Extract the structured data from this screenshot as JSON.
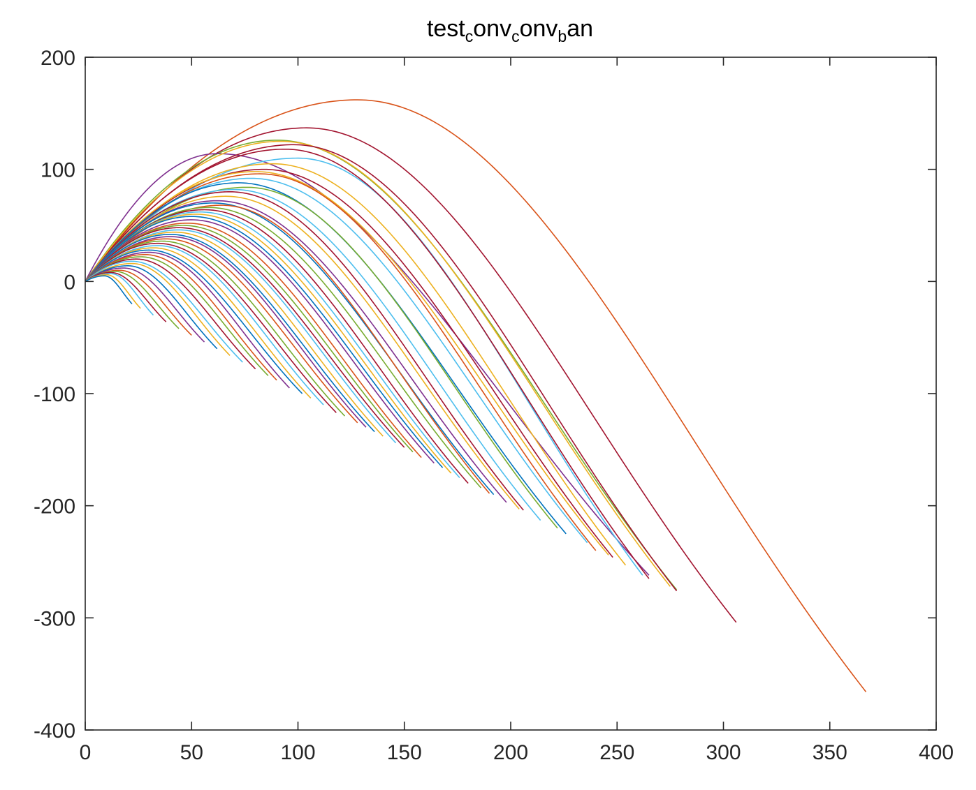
{
  "chart_data": {
    "type": "line",
    "title": {
      "parts": [
        {
          "text": "test",
          "sub": false
        },
        {
          "text": "c",
          "sub": true
        },
        {
          "text": "onv",
          "sub": false
        },
        {
          "text": "c",
          "sub": true
        },
        {
          "text": "onv",
          "sub": false
        },
        {
          "text": "b",
          "sub": true
        },
        {
          "text": "an",
          "sub": false
        }
      ]
    },
    "xlabel": "",
    "ylabel": "",
    "xlim": [
      0,
      400
    ],
    "ylim": [
      -400,
      200
    ],
    "xticks": [
      0,
      50,
      100,
      150,
      200,
      250,
      300,
      350,
      400
    ],
    "yticks": [
      -400,
      -300,
      -200,
      -100,
      0,
      100,
      200
    ],
    "xtick_labels": [
      "0",
      "50",
      "100",
      "150",
      "200",
      "250",
      "300",
      "350",
      "400"
    ],
    "ytick_labels": [
      "-400",
      "-300",
      "-200",
      "-100",
      "0",
      "100",
      "200"
    ],
    "grid": false,
    "legend": "none",
    "colors": [
      "#0072BD",
      "#D95319",
      "#EDB120",
      "#7E2F8E",
      "#77AC30",
      "#4DBEEE",
      "#A2142F"
    ],
    "description_of_family": "Projectile-like arcs starting at origin; each curve rises to an apex then descends and terminates on the line y ≈ -0.9·x.",
    "series": [
      {
        "color": "#D95319",
        "apex": [
          128,
          162
        ],
        "end": [
          367,
          -366
        ]
      },
      {
        "color": "#A2142F",
        "apex": [
          104,
          137
        ],
        "end": [
          306,
          -304
        ]
      },
      {
        "color": "#77AC30",
        "apex": [
          90,
          126
        ],
        "end": [
          278,
          -275
        ]
      },
      {
        "color": "#7E2F8E",
        "apex": [
          62,
          114
        ],
        "end": [
          265,
          -262
        ]
      },
      {
        "color": "#EDB120",
        "apex": [
          92,
          125
        ],
        "end": [
          275,
          -272
        ]
      },
      {
        "color": "#A2142F",
        "apex": [
          98,
          122
        ],
        "end": [
          278,
          -276
        ]
      },
      {
        "color": "#4DBEEE",
        "apex": [
          100,
          110
        ],
        "end": [
          262,
          -262
        ]
      },
      {
        "color": "#A2142F",
        "apex": [
          94,
          118
        ],
        "end": [
          265,
          -265
        ]
      },
      {
        "color": "#EDB120",
        "apex": [
          88,
          105
        ],
        "end": [
          254,
          -253
        ]
      },
      {
        "color": "#A2142F",
        "apex": [
          84,
          100
        ],
        "end": [
          248,
          -246
        ]
      },
      {
        "color": "#EDB120",
        "apex": [
          80,
          98
        ],
        "end": [
          246,
          -244
        ]
      },
      {
        "color": "#4DBEEE",
        "apex": [
          78,
          92
        ],
        "end": [
          236,
          -233
        ]
      },
      {
        "color": "#D95319",
        "apex": [
          82,
          96
        ],
        "end": [
          240,
          -240
        ]
      },
      {
        "color": "#0072BD",
        "apex": [
          72,
          88
        ],
        "end": [
          226,
          -225
        ]
      },
      {
        "color": "#77AC30",
        "apex": [
          76,
          84
        ],
        "end": [
          222,
          -220
        ]
      },
      {
        "color": "#4DBEEE",
        "apex": [
          70,
          82
        ],
        "end": [
          214,
          -213
        ]
      },
      {
        "color": "#A2142F",
        "apex": [
          68,
          80
        ],
        "end": [
          206,
          -204
        ]
      },
      {
        "color": "#EDB120",
        "apex": [
          66,
          76
        ],
        "end": [
          204,
          -203
        ]
      },
      {
        "color": "#7E2F8E",
        "apex": [
          62,
          72
        ],
        "end": [
          198,
          -197
        ]
      },
      {
        "color": "#0072BD",
        "apex": [
          60,
          70
        ],
        "end": [
          192,
          -190
        ]
      },
      {
        "color": "#D95319",
        "apex": [
          64,
          68
        ],
        "end": [
          190,
          -189
        ]
      },
      {
        "color": "#77AC30",
        "apex": [
          58,
          66
        ],
        "end": [
          186,
          -184
        ]
      },
      {
        "color": "#A2142F",
        "apex": [
          56,
          64
        ],
        "end": [
          180,
          -180
        ]
      },
      {
        "color": "#4DBEEE",
        "apex": [
          54,
          62
        ],
        "end": [
          176,
          -175
        ]
      },
      {
        "color": "#EDB120",
        "apex": [
          52,
          60
        ],
        "end": [
          172,
          -171
        ]
      },
      {
        "color": "#0072BD",
        "apex": [
          50,
          58
        ],
        "end": [
          168,
          -166
        ]
      },
      {
        "color": "#7E2F8E",
        "apex": [
          50,
          55
        ],
        "end": [
          164,
          -162
        ]
      },
      {
        "color": "#D95319",
        "apex": [
          48,
          52
        ],
        "end": [
          158,
          -157
        ]
      },
      {
        "color": "#77AC30",
        "apex": [
          46,
          50
        ],
        "end": [
          154,
          -152
        ]
      },
      {
        "color": "#A2142F",
        "apex": [
          44,
          48
        ],
        "end": [
          150,
          -148
        ]
      },
      {
        "color": "#4DBEEE",
        "apex": [
          44,
          46
        ],
        "end": [
          146,
          -144
        ]
      },
      {
        "color": "#EDB120",
        "apex": [
          42,
          44
        ],
        "end": [
          140,
          -138
        ]
      },
      {
        "color": "#0072BD",
        "apex": [
          40,
          42
        ],
        "end": [
          136,
          -134
        ]
      },
      {
        "color": "#7E2F8E",
        "apex": [
          40,
          40
        ],
        "end": [
          132,
          -130
        ]
      },
      {
        "color": "#D95319",
        "apex": [
          38,
          38
        ],
        "end": [
          128,
          -126
        ]
      },
      {
        "color": "#77AC30",
        "apex": [
          36,
          36
        ],
        "end": [
          122,
          -120
        ]
      },
      {
        "color": "#A2142F",
        "apex": [
          34,
          34
        ],
        "end": [
          118,
          -117
        ]
      },
      {
        "color": "#4DBEEE",
        "apex": [
          34,
          32
        ],
        "end": [
          112,
          -110
        ]
      },
      {
        "color": "#EDB120",
        "apex": [
          32,
          30
        ],
        "end": [
          106,
          -104
        ]
      },
      {
        "color": "#0072BD",
        "apex": [
          30,
          28
        ],
        "end": [
          102,
          -100
        ]
      },
      {
        "color": "#7E2F8E",
        "apex": [
          30,
          26
        ],
        "end": [
          96,
          -95
        ]
      },
      {
        "color": "#D95319",
        "apex": [
          28,
          24
        ],
        "end": [
          90,
          -88
        ]
      },
      {
        "color": "#77AC30",
        "apex": [
          26,
          22
        ],
        "end": [
          86,
          -84
        ]
      },
      {
        "color": "#A2142F",
        "apex": [
          24,
          20
        ],
        "end": [
          80,
          -78
        ]
      },
      {
        "color": "#4DBEEE",
        "apex": [
          22,
          18
        ],
        "end": [
          74,
          -72
        ]
      },
      {
        "color": "#EDB120",
        "apex": [
          22,
          16
        ],
        "end": [
          68,
          -66
        ]
      },
      {
        "color": "#0072BD",
        "apex": [
          20,
          14
        ],
        "end": [
          62,
          -60
        ]
      },
      {
        "color": "#7E2F8E",
        "apex": [
          18,
          12
        ],
        "end": [
          56,
          -54
        ]
      },
      {
        "color": "#D95319",
        "apex": [
          16,
          10
        ],
        "end": [
          50,
          -48
        ]
      },
      {
        "color": "#77AC30",
        "apex": [
          14,
          9
        ],
        "end": [
          44,
          -42
        ]
      },
      {
        "color": "#A2142F",
        "apex": [
          12,
          8
        ],
        "end": [
          38,
          -36
        ]
      },
      {
        "color": "#4DBEEE",
        "apex": [
          12,
          7
        ],
        "end": [
          32,
          -30
        ]
      },
      {
        "color": "#EDB120",
        "apex": [
          10,
          6
        ],
        "end": [
          26,
          -24
        ]
      },
      {
        "color": "#0072BD",
        "apex": [
          9,
          5
        ],
        "end": [
          22,
          -20
        ]
      }
    ]
  }
}
